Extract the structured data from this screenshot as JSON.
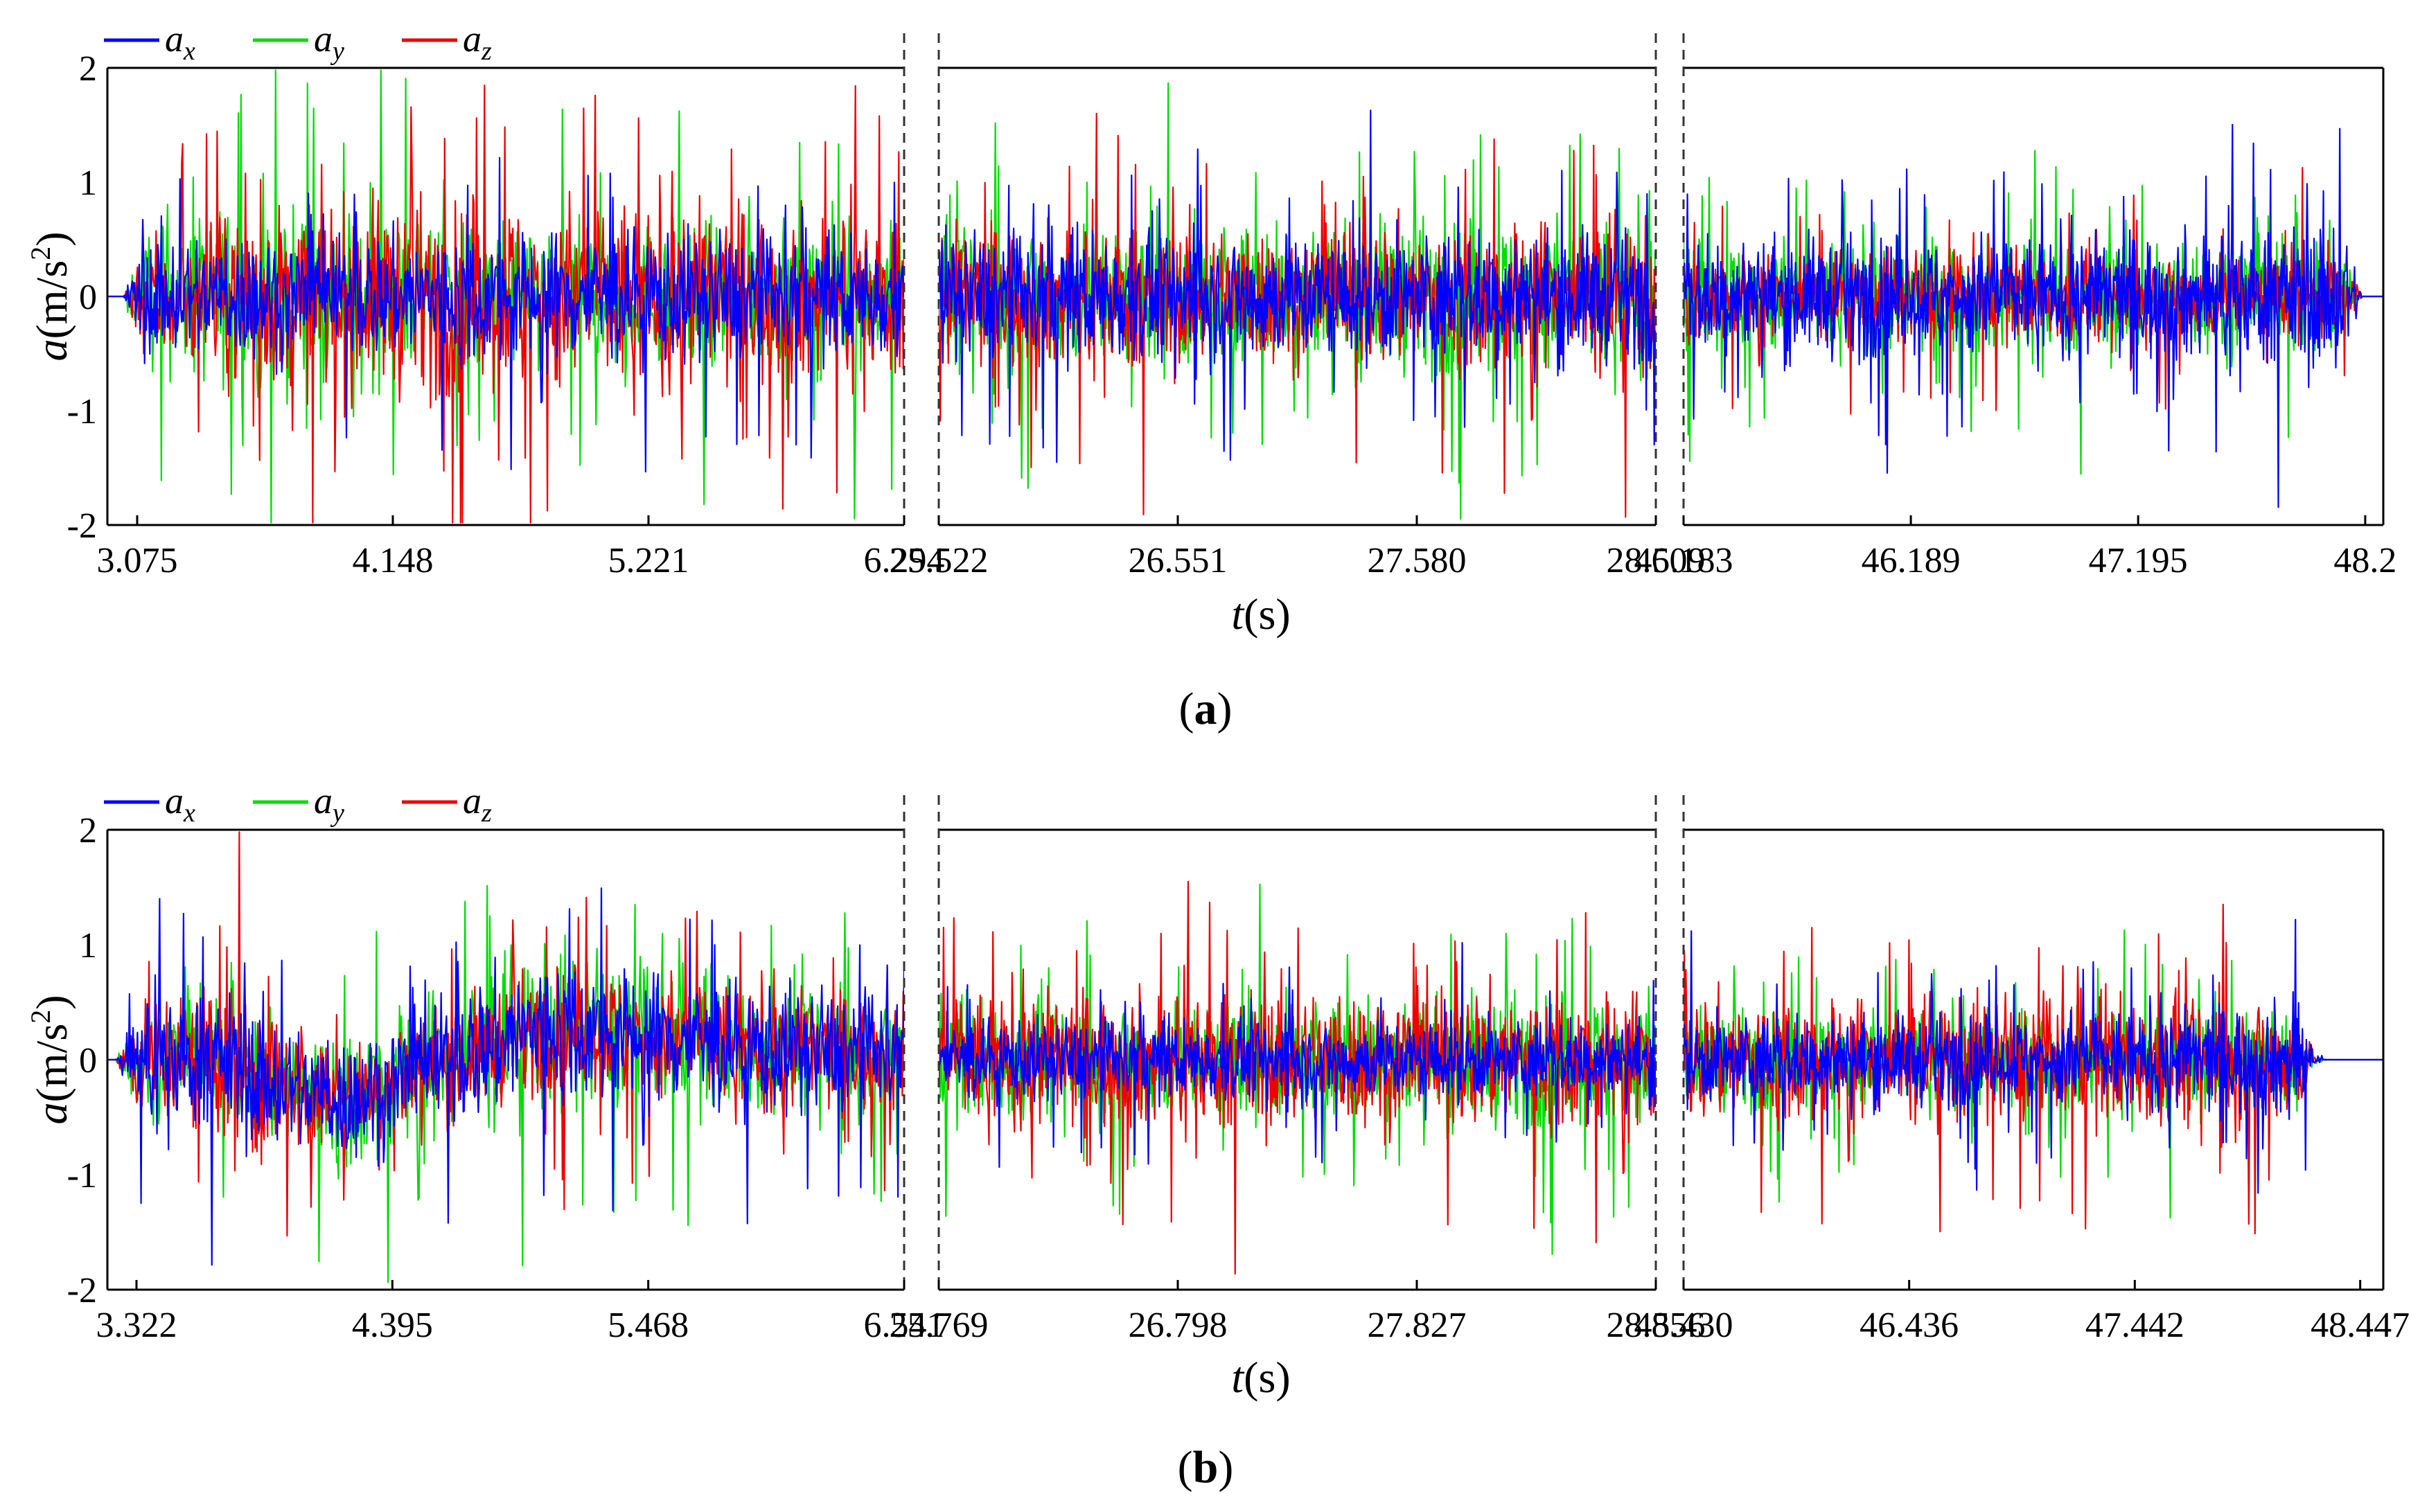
{
  "chart_data": [
    {
      "id": "a",
      "type": "line",
      "panel_label": "a",
      "ylabel_var": "a",
      "ylabel_unit": "(m/s",
      "ylabel_exp": "2",
      "ylabel_close": ")",
      "xlabel_var": "t",
      "xlabel_unit": "(s)",
      "ylim": [
        -2,
        2
      ],
      "yticks": [
        "2",
        "1",
        "0",
        "-1",
        "-2"
      ],
      "grid": false,
      "legend_position": "top-left",
      "series": [
        {
          "name": "a_x",
          "sub": "x",
          "color": "#0000ff"
        },
        {
          "name": "a_y",
          "sub": "y",
          "color": "#00dd00"
        },
        {
          "name": "a_z",
          "sub": "z",
          "color": "#ee0000"
        }
      ],
      "segments": [
        {
          "xlim": [
            2.95,
            6.294
          ],
          "xticks": [
            "3.075",
            "4.148",
            "5.221",
            "6.294"
          ],
          "envelope": {
            "x": [
              0.0,
              0.02,
              0.05,
              0.2,
              0.3,
              0.5,
              0.8,
              1.0
            ],
            "ax": [
              0.0,
              0.0,
              0.75,
              0.8,
              0.75,
              0.85,
              0.8,
              0.75
            ],
            "ay": [
              0.0,
              0.0,
              0.85,
              1.3,
              1.0,
              0.95,
              0.9,
              0.85
            ],
            "az": [
              0.0,
              0.0,
              0.85,
              1.1,
              1.2,
              1.25,
              1.15,
              0.95
            ]
          }
        },
        {
          "xlim": [
            25.522,
            28.609
          ],
          "xticks": [
            "25.522",
            "26.551",
            "27.580",
            "28.609"
          ],
          "envelope": {
            "x": [
              0.0,
              0.5,
              1.0
            ],
            "ax": [
              0.8,
              0.8,
              0.8
            ],
            "ay": [
              0.95,
              0.9,
              1.0
            ],
            "az": [
              0.9,
              0.85,
              1.05
            ]
          }
        },
        {
          "xlim": [
            45.183,
            48.28
          ],
          "xticks": [
            "45.183",
            "46.189",
            "47.195",
            "48.2"
          ],
          "envelope": {
            "x": [
              0.0,
              0.5,
              0.88,
              0.94,
              0.97,
              1.0
            ],
            "ax": [
              0.75,
              0.75,
              0.85,
              1.1,
              0.0,
              0.0
            ],
            "ay": [
              0.7,
              0.7,
              0.75,
              0.8,
              0.0,
              0.0
            ],
            "az": [
              0.55,
              0.55,
              0.55,
              0.6,
              0.0,
              0.0
            ]
          }
        }
      ]
    },
    {
      "id": "b",
      "type": "line",
      "panel_label": "b",
      "ylabel_var": "a",
      "ylabel_unit": "(m/s",
      "ylabel_exp": "2",
      "ylabel_close": ")",
      "xlabel_var": "t",
      "xlabel_unit": "(s)",
      "ylim": [
        -2,
        2
      ],
      "yticks": [
        "2",
        "1",
        "0",
        "-1",
        "-2"
      ],
      "grid": false,
      "legend_position": "top-left",
      "series": [
        {
          "name": "a_x",
          "sub": "x",
          "color": "#0000ff"
        },
        {
          "name": "a_y",
          "sub": "y",
          "color": "#00dd00"
        },
        {
          "name": "a_z",
          "sub": "z",
          "color": "#ee0000"
        }
      ],
      "segments": [
        {
          "xlim": [
            3.2,
            6.541
          ],
          "xticks": [
            "3.322",
            "4.395",
            "5.468",
            "6.541"
          ],
          "envelope": {
            "x": [
              0.0,
              0.01,
              0.04,
              0.18,
              0.28,
              0.5,
              0.7,
              1.0
            ],
            "ax": [
              0.0,
              0.0,
              0.75,
              0.85,
              0.75,
              0.9,
              0.85,
              0.75
            ],
            "ay": [
              0.0,
              0.0,
              0.65,
              0.75,
              0.9,
              1.1,
              0.9,
              0.7
            ],
            "az": [
              0.0,
              0.0,
              0.75,
              1.25,
              0.6,
              0.75,
              0.8,
              0.7
            ]
          },
          "baseline": {
            "x": [
              0.0,
              0.15,
              0.2,
              0.3,
              0.55,
              0.8,
              1.0
            ],
            "y": [
              0.0,
              0.0,
              -0.2,
              -0.35,
              0.3,
              0.1,
              0.05
            ]
          }
        },
        {
          "xlim": [
            25.769,
            28.856
          ],
          "xticks": [
            "25.769",
            "26.798",
            "27.827",
            "28.856"
          ],
          "envelope": {
            "x": [
              0.0,
              0.5,
              1.0
            ],
            "ax": [
              0.5,
              0.5,
              0.5
            ],
            "ay": [
              0.75,
              0.75,
              0.85
            ],
            "az": [
              0.85,
              0.85,
              0.9
            ]
          }
        },
        {
          "xlim": [
            45.43,
            48.55
          ],
          "xticks": [
            "45.430",
            "46.436",
            "47.442",
            "48.447"
          ],
          "envelope": {
            "x": [
              0.0,
              0.5,
              0.85,
              0.88,
              0.9,
              0.92,
              1.0
            ],
            "ax": [
              0.55,
              0.55,
              0.7,
              1.0,
              0.05,
              0.0,
              0.0
            ],
            "ay": [
              0.6,
              0.6,
              0.65,
              0.65,
              0.05,
              0.0,
              0.0
            ],
            "az": [
              0.8,
              0.8,
              0.85,
              0.7,
              0.05,
              0.0,
              0.0
            ]
          }
        }
      ]
    }
  ]
}
